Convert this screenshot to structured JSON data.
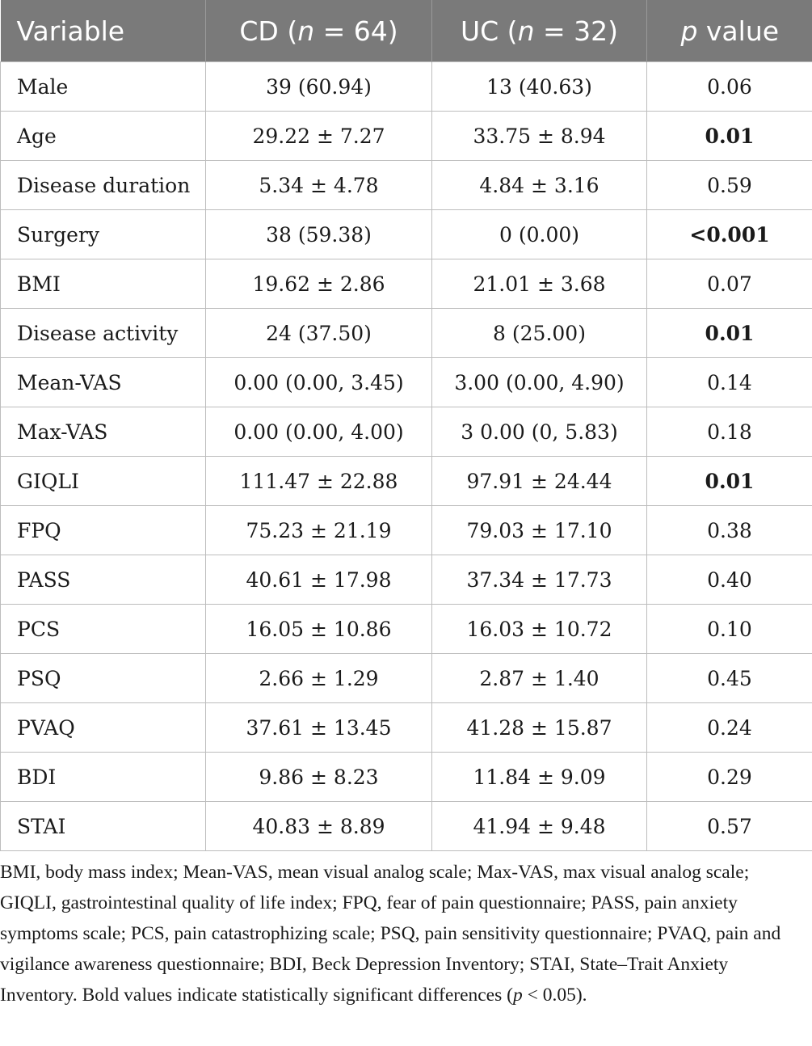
{
  "table": {
    "headers": {
      "variable": "Variable",
      "cd_prefix": "CD (",
      "cd_n": "n",
      "cd_suffix": " = 64)",
      "uc_prefix": "UC (",
      "uc_n": "n",
      "uc_suffix": " = 32)",
      "p_italic": "p",
      "p_suffix": " value"
    },
    "rows": [
      {
        "variable": "Male",
        "cd": "39 (60.94)",
        "uc": "13 (40.63)",
        "p": "0.06",
        "significant": false
      },
      {
        "variable": "Age",
        "cd": "29.22 ± 7.27",
        "uc": "33.75 ± 8.94",
        "p": "0.01",
        "significant": true
      },
      {
        "variable": "Disease duration",
        "cd": "5.34 ± 4.78",
        "uc": "4.84 ± 3.16",
        "p": "0.59",
        "significant": false
      },
      {
        "variable": "Surgery",
        "cd": "38 (59.38)",
        "uc": "0 (0.00)",
        "p": "<0.001",
        "significant": true
      },
      {
        "variable": "BMI",
        "cd": "19.62 ± 2.86",
        "uc": "21.01 ± 3.68",
        "p": "0.07",
        "significant": false
      },
      {
        "variable": "Disease activity",
        "cd": "24 (37.50)",
        "uc": "8 (25.00)",
        "p": "0.01",
        "significant": true
      },
      {
        "variable": "Mean-VAS",
        "cd": "0.00 (0.00, 3.45)",
        "uc": "3.00 (0.00, 4.90)",
        "p": "0.14",
        "significant": false
      },
      {
        "variable": "Max-VAS",
        "cd": "0.00 (0.00, 4.00)",
        "uc": "3 0.00 (0, 5.83)",
        "p": "0.18",
        "significant": false
      },
      {
        "variable": "GIQLI",
        "cd": "111.47 ± 22.88",
        "uc": "97.91 ± 24.44",
        "p": "0.01",
        "significant": true
      },
      {
        "variable": "FPQ",
        "cd": "75.23 ± 21.19",
        "uc": "79.03 ± 17.10",
        "p": "0.38",
        "significant": false
      },
      {
        "variable": "PASS",
        "cd": "40.61 ± 17.98",
        "uc": "37.34 ± 17.73",
        "p": "0.40",
        "significant": false
      },
      {
        "variable": "PCS",
        "cd": "16.05 ± 10.86",
        "uc": "16.03 ± 10.72",
        "p": "0.10",
        "significant": false
      },
      {
        "variable": "PSQ",
        "cd": "2.66 ± 1.29",
        "uc": "2.87 ± 1.40",
        "p": "0.45",
        "significant": false
      },
      {
        "variable": "PVAQ",
        "cd": "37.61 ± 13.45",
        "uc": "41.28 ± 15.87",
        "p": "0.24",
        "significant": false
      },
      {
        "variable": "BDI",
        "cd": "9.86 ± 8.23",
        "uc": "11.84 ± 9.09",
        "p": "0.29",
        "significant": false
      },
      {
        "variable": "STAI",
        "cd": "40.83 ± 8.89",
        "uc": "41.94 ± 9.48",
        "p": "0.57",
        "significant": false
      }
    ]
  },
  "footnote": {
    "text_main": "BMI, body mass index; Mean-VAS, mean visual analog scale; Max-VAS, max visual analog scale; GIQLI, gastrointestinal quality of life index; FPQ, fear of pain questionnaire; PASS, pain anxiety symptoms scale; PCS, pain catastrophizing scale; PSQ, pain sensitivity questionnaire; PVAQ, pain and vigilance awareness questionnaire; BDI, Beck Depression Inventory; STAI, State–Trait Anxiety Inventory. Bold values indicate statistically significant differences (",
    "p_italic": "p",
    "text_end": " < 0.05)."
  },
  "colors": {
    "header_bg": "#7a7a7a",
    "header_text": "#ffffff",
    "grid": "#bdbdbd"
  }
}
